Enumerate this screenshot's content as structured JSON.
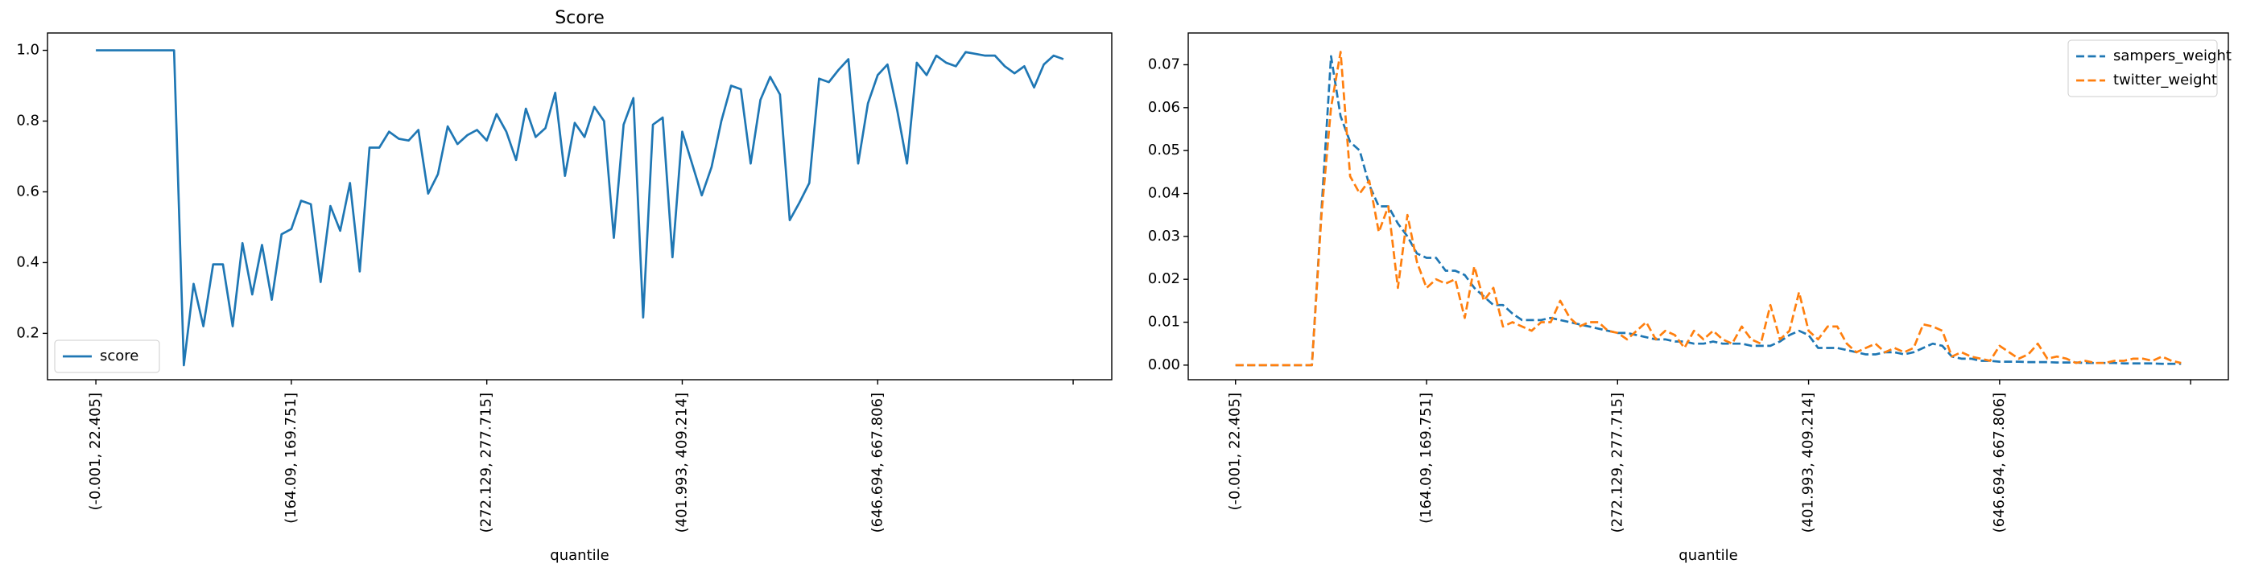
{
  "chart_data": [
    {
      "type": "line",
      "title": "Score",
      "xlabel": "quantile",
      "categories": [
        "(-0.001, 22.405]",
        null,
        null,
        null,
        null,
        null,
        null,
        null,
        null,
        null,
        null,
        null,
        null,
        null,
        null,
        null,
        null,
        null,
        null,
        null,
        "(164.09, 169.751]",
        null,
        null,
        null,
        null,
        null,
        null,
        null,
        null,
        null,
        null,
        null,
        null,
        null,
        null,
        null,
        null,
        null,
        null,
        null,
        "(272.129, 277.715]",
        null,
        null,
        null,
        null,
        null,
        null,
        null,
        null,
        null,
        null,
        null,
        null,
        null,
        null,
        null,
        null,
        null,
        null,
        null,
        "(401.993, 409.214]",
        null,
        null,
        null,
        null,
        null,
        null,
        null,
        null,
        null,
        null,
        null,
        null,
        null,
        null,
        null,
        null,
        null,
        null,
        null,
        "(646.694, 667.806]",
        null,
        null,
        null,
        null,
        null,
        null,
        null,
        null,
        null,
        null,
        null,
        null,
        null,
        null,
        null,
        null,
        null,
        null,
        null
      ],
      "xlim": [
        -4.95,
        103.95
      ],
      "xticks": [
        0,
        20,
        40,
        60,
        80,
        100
      ],
      "ylim": [
        0.069,
        1.049
      ],
      "yticks": [
        0.2,
        0.4,
        0.6,
        0.8,
        {
          "value": 1,
          "label": "1.0"
        }
      ],
      "legend": "lower left",
      "series": [
        {
          "name": "score",
          "color": "#1f77b4",
          "linestyle": "solid",
          "values": [
            1,
            1,
            1,
            1,
            1,
            1,
            1,
            1,
            1,
            0.11,
            0.34,
            0.22,
            0.395,
            0.395,
            0.22,
            0.455,
            0.31,
            0.45,
            0.295,
            0.48,
            0.495,
            0.575,
            0.565,
            0.345,
            0.56,
            0.49,
            0.625,
            0.375,
            0.725,
            0.725,
            0.77,
            0.75,
            0.745,
            0.775,
            0.595,
            0.65,
            0.785,
            0.735,
            0.76,
            0.775,
            0.745,
            0.82,
            0.77,
            0.69,
            0.835,
            0.755,
            0.78,
            0.88,
            0.645,
            0.795,
            0.755,
            0.84,
            0.8,
            0.47,
            0.79,
            0.865,
            0.245,
            0.79,
            0.81,
            0.415,
            0.77,
            0.68,
            0.59,
            0.67,
            0.8,
            0.9,
            0.89,
            0.68,
            0.86,
            0.925,
            0.875,
            0.52,
            0.57,
            0.625,
            0.92,
            0.91,
            0.945,
            0.975,
            0.68,
            0.85,
            0.93,
            0.96,
            0.83,
            0.68,
            0.965,
            0.93,
            0.985,
            0.965,
            0.955,
            0.995,
            0.99,
            0.985,
            0.985,
            0.955,
            0.935,
            0.955,
            0.895,
            0.96,
            0.985,
            0.975
          ]
        }
      ]
    },
    {
      "type": "line",
      "xlabel": "quantile",
      "categories": [
        "(-0.001, 22.405]",
        null,
        null,
        null,
        null,
        null,
        null,
        null,
        null,
        null,
        null,
        null,
        null,
        null,
        null,
        null,
        null,
        null,
        null,
        null,
        "(164.09, 169.751]",
        null,
        null,
        null,
        null,
        null,
        null,
        null,
        null,
        null,
        null,
        null,
        null,
        null,
        null,
        null,
        null,
        null,
        null,
        null,
        "(272.129, 277.715]",
        null,
        null,
        null,
        null,
        null,
        null,
        null,
        null,
        null,
        null,
        null,
        null,
        null,
        null,
        null,
        null,
        null,
        null,
        null,
        "(401.993, 409.214]",
        null,
        null,
        null,
        null,
        null,
        null,
        null,
        null,
        null,
        null,
        null,
        null,
        null,
        null,
        null,
        null,
        null,
        null,
        null,
        "(646.694, 667.806]",
        null,
        null,
        null,
        null,
        null,
        null,
        null,
        null,
        null,
        null,
        null,
        null,
        null,
        null,
        null,
        null,
        null,
        null,
        null
      ],
      "xlim": [
        -4.95,
        103.95
      ],
      "xticks": [
        0,
        20,
        40,
        60,
        80,
        100
      ],
      "ylim": [
        -0.0034,
        0.0774
      ],
      "yticks": [
        {
          "value": 0,
          "label": "0.00"
        },
        0.01,
        0.02,
        0.03,
        0.04,
        0.05,
        0.06,
        0.07
      ],
      "legend": "upper right",
      "series": [
        {
          "name": "sampers_weight",
          "color": "#1f77b4",
          "linestyle": "dashed",
          "values": [
            0,
            0,
            0,
            0,
            0,
            0,
            0,
            0,
            0,
            0.036,
            0.072,
            0.058,
            0.052,
            0.05,
            0.042,
            0.037,
            0.037,
            0.033,
            0.03,
            0.026,
            0.025,
            0.025,
            0.022,
            0.022,
            0.021,
            0.018,
            0.016,
            0.014,
            0.014,
            0.012,
            0.0105,
            0.0105,
            0.0105,
            0.011,
            0.0105,
            0.01,
            0.0095,
            0.009,
            0.0085,
            0.008,
            0.0075,
            0.0075,
            0.007,
            0.0065,
            0.006,
            0.006,
            0.0055,
            0.0055,
            0.005,
            0.005,
            0.0055,
            0.005,
            0.005,
            0.005,
            0.0045,
            0.0045,
            0.0045,
            0.0055,
            0.007,
            0.008,
            0.007,
            0.004,
            0.004,
            0.004,
            0.0035,
            0.003,
            0.0025,
            0.0025,
            0.003,
            0.003,
            0.0025,
            0.003,
            0.004,
            0.005,
            0.0045,
            0.002,
            0.0015,
            0.0015,
            0.001,
            0.001,
            0.0008,
            0.0008,
            0.0008,
            0.0007,
            0.0007,
            0.0007,
            0.0006,
            0.0006,
            0.0006,
            0.0005,
            0.0005,
            0.0005,
            0.0005,
            0.0004,
            0.0004,
            0.0004,
            0.0004,
            0.0003,
            0.0003,
            0.0003
          ]
        },
        {
          "name": "twitter_weight",
          "color": "#ff7f0e",
          "linestyle": "dashed",
          "values": [
            0,
            0,
            0,
            0,
            0,
            0,
            0,
            0,
            0,
            0.035,
            0.06,
            0.073,
            0.044,
            0.04,
            0.043,
            0.031,
            0.037,
            0.018,
            0.035,
            0.024,
            0.018,
            0.02,
            0.019,
            0.02,
            0.011,
            0.023,
            0.015,
            0.018,
            0.009,
            0.01,
            0.009,
            0.008,
            0.01,
            0.01,
            0.015,
            0.011,
            0.009,
            0.01,
            0.01,
            0.008,
            0.0075,
            0.006,
            0.008,
            0.01,
            0.006,
            0.008,
            0.007,
            0.004,
            0.008,
            0.006,
            0.008,
            0.006,
            0.005,
            0.009,
            0.006,
            0.005,
            0.014,
            0.006,
            0.008,
            0.017,
            0.008,
            0.006,
            0.009,
            0.009,
            0.005,
            0.003,
            0.004,
            0.005,
            0.003,
            0.004,
            0.003,
            0.004,
            0.0095,
            0.009,
            0.008,
            0.002,
            0.003,
            0.002,
            0.0015,
            0.001,
            0.0045,
            0.003,
            0.0015,
            0.0025,
            0.005,
            0.0015,
            0.002,
            0.0015,
            0.0005,
            0.001,
            0.0005,
            0.0005,
            0.001,
            0.001,
            0.0015,
            0.0015,
            0.001,
            0.002,
            0.001,
            0.0005
          ]
        }
      ]
    }
  ]
}
